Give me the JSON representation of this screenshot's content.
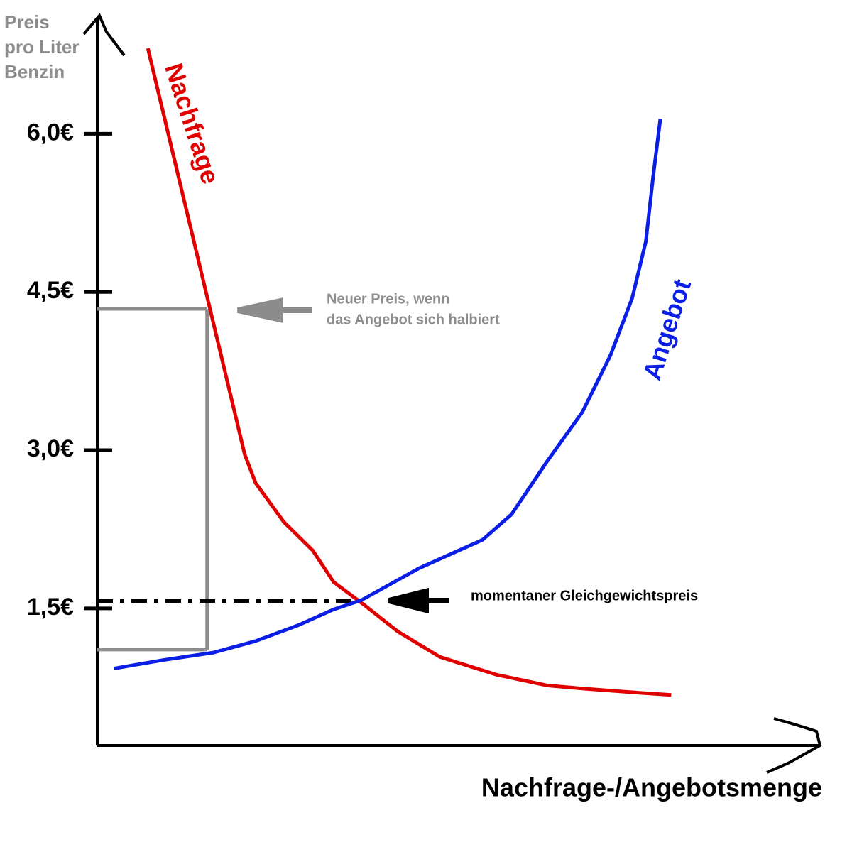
{
  "chart_data": {
    "type": "line",
    "y_label": [
      "Preis",
      "pro Liter",
      "Benzin"
    ],
    "x_label": "Nachfrage-/Angebotsmenge",
    "xlim": [
      0,
      100
    ],
    "ylim": [
      0.2,
      7.1
    ],
    "yticks": [
      {
        "value": 1.5,
        "label": "1,5€"
      },
      {
        "value": 3.0,
        "label": "3,0€"
      },
      {
        "value": 4.5,
        "label": "4,5€"
      },
      {
        "value": 6.0,
        "label": "6,0€"
      }
    ],
    "series": [
      {
        "name": "Nachfrage",
        "color": "#e00000",
        "x": [
          7.0,
          20.4,
          21.9,
          25.8,
          29.8,
          32.7,
          36.6,
          41.6,
          47.4,
          55.3,
          62.2,
          67.1,
          75.0,
          79.4
        ],
        "values": [
          6.81,
          2.96,
          2.69,
          2.32,
          2.05,
          1.75,
          1.55,
          1.28,
          1.04,
          0.87,
          0.77,
          0.74,
          0.7,
          0.68
        ]
      },
      {
        "name": "Angebot",
        "color": "#0a1ee6",
        "x": [
          2.3,
          9.1,
          16.0,
          21.9,
          27.8,
          32.7,
          36.6,
          44.5,
          53.3,
          57.3,
          62.2,
          67.1,
          71.0,
          74.0,
          75.9,
          76.9,
          77.9
        ],
        "values": [
          0.93,
          1.01,
          1.08,
          1.19,
          1.34,
          1.49,
          1.58,
          1.88,
          2.15,
          2.39,
          2.89,
          3.36,
          3.9,
          4.44,
          4.98,
          5.59,
          6.14
        ]
      }
    ],
    "new_price_guide": {
      "x": 15.2,
      "y": [
        1.11,
        4.34
      ]
    },
    "equilibrium": {
      "x": 36.6,
      "y": 1.57
    },
    "annotations": [
      {
        "text": [
          "Neuer Preis, wenn",
          "das Angebot sich halbiert"
        ],
        "color": "#8c8c8c"
      },
      {
        "text": [
          "momentaner Gleichgewichtspreis"
        ],
        "color": "#000000"
      }
    ]
  }
}
